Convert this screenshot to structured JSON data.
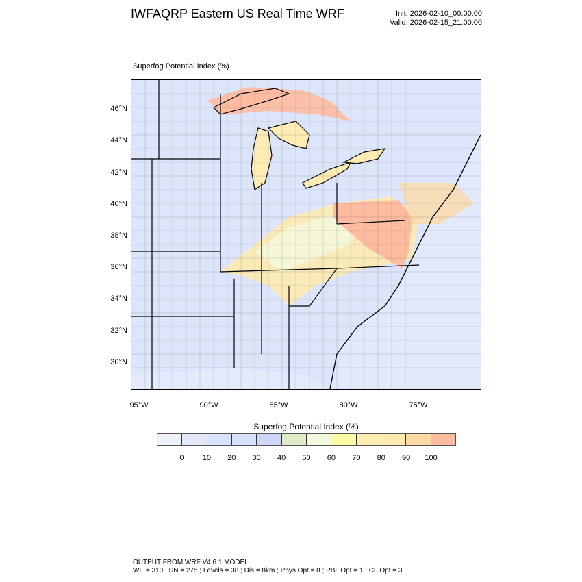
{
  "header": {
    "title": "IWFAQRP Eastern US Real Time WRF",
    "init": "Init: 2026-02-10_00:00:00",
    "valid": "Valid: 2026-02-15_21:00:00"
  },
  "plot": {
    "label": "Superfog Potential Index   (%)",
    "lat_labels": [
      "46°N",
      "44°N",
      "42°N",
      "40°N",
      "38°N",
      "36°N",
      "34°N",
      "32°N",
      "30°N"
    ],
    "lon_labels": [
      "95°W",
      "90°W",
      "85°W",
      "80°W",
      "75°W"
    ]
  },
  "colorbar": {
    "title": "Superfog Potential Index  (%)",
    "colors": [
      "#eef1f8",
      "#e3e9fb",
      "#d9e2fb",
      "#d6e1fb",
      "#cfd7f9",
      "#dfebc9",
      "#f3f9de",
      "#fdfaa6",
      "#fdecb4",
      "#fdeab0",
      "#fdd9a6",
      "#fdbba0"
    ],
    "labels": [
      "0",
      "10",
      "20",
      "30",
      "40",
      "50",
      "60",
      "70",
      "80",
      "90",
      "100"
    ]
  },
  "footer": {
    "line1": "OUTPUT FROM WRF V4.6.1 MODEL",
    "line2": "WE = 310 ; SN = 275 ; Levels = 38 ; Dis = 8km ; Phys Opt = 8 ; PBL Opt = 1 ; Cu Opt = 3"
  }
}
